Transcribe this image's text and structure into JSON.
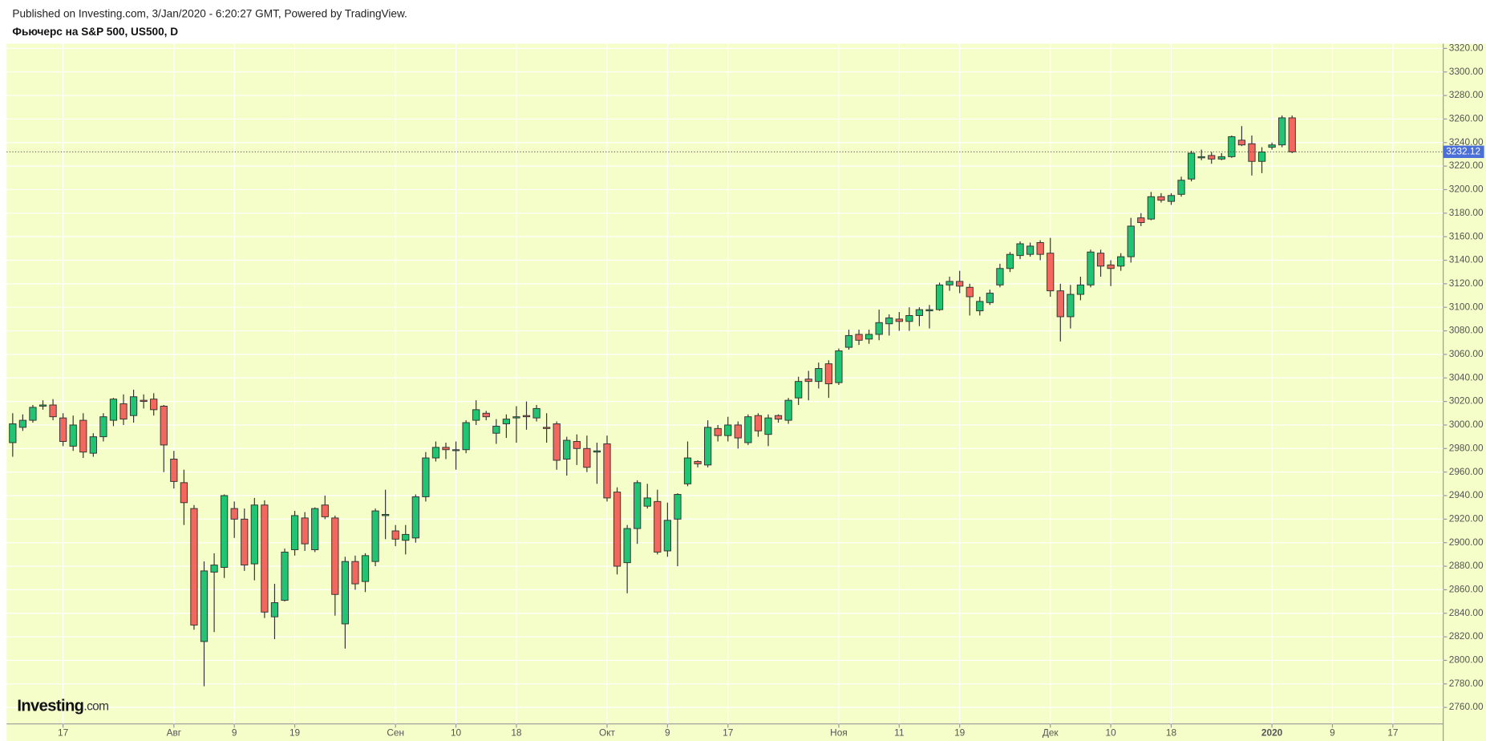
{
  "chart_data": {
    "type": "candlestick",
    "subtitle": "Published on Investing.com, 3/Jan/2020 - 6:20:27 GMT, Powered by TradingView.",
    "title": "Фьючерс на S&P 500, US500, D",
    "logo": "Investing",
    "logo_suffix": ".com",
    "up_color": "#20c472",
    "down_color": "#f2675e",
    "background": "#f5fdc9",
    "last_price_color": "#4a6fd8",
    "grid": true,
    "xlim": [
      -0.6,
      142
    ],
    "xticks": [
      {
        "value": 5,
        "label": "17"
      },
      {
        "value": 16,
        "label": "Авг"
      },
      {
        "value": 22,
        "label": "9"
      },
      {
        "value": 28,
        "label": "19"
      },
      {
        "value": 38,
        "label": "Сен"
      },
      {
        "value": 44,
        "label": "10"
      },
      {
        "value": 50,
        "label": "18"
      },
      {
        "value": 59,
        "label": "Окт"
      },
      {
        "value": 65,
        "label": "9"
      },
      {
        "value": 71,
        "label": "17"
      },
      {
        "value": 82,
        "label": "Ноя"
      },
      {
        "value": 88,
        "label": "11"
      },
      {
        "value": 94,
        "label": "19"
      },
      {
        "value": 103,
        "label": "Дек"
      },
      {
        "value": 109,
        "label": "10"
      },
      {
        "value": 115,
        "label": "18"
      },
      {
        "value": 125,
        "label": "2020",
        "bold": true
      },
      {
        "value": 131,
        "label": "9"
      },
      {
        "value": 137,
        "label": "17"
      }
    ],
    "ylim": [
      2746,
      3324
    ],
    "yticks": [
      {
        "value": 2760,
        "label": "2760.00"
      },
      {
        "value": 2780,
        "label": "2780.00"
      },
      {
        "value": 2800,
        "label": "2800.00"
      },
      {
        "value": 2820,
        "label": "2820.00"
      },
      {
        "value": 2840,
        "label": "2840.00"
      },
      {
        "value": 2860,
        "label": "2860.00"
      },
      {
        "value": 2880,
        "label": "2880.00"
      },
      {
        "value": 2900,
        "label": "2900.00"
      },
      {
        "value": 2920,
        "label": "2920.00"
      },
      {
        "value": 2940,
        "label": "2940.00"
      },
      {
        "value": 2960,
        "label": "2960.00"
      },
      {
        "value": 2980,
        "label": "2980.00"
      },
      {
        "value": 3000,
        "label": "3000.00"
      },
      {
        "value": 3020,
        "label": "3020.00"
      },
      {
        "value": 3040,
        "label": "3040.00"
      },
      {
        "value": 3060,
        "label": "3060.00"
      },
      {
        "value": 3080,
        "label": "3080.00"
      },
      {
        "value": 3100,
        "label": "3100.00"
      },
      {
        "value": 3120,
        "label": "3120.00"
      },
      {
        "value": 3140,
        "label": "3140.00"
      },
      {
        "value": 3160,
        "label": "3160.00"
      },
      {
        "value": 3180,
        "label": "3180.00"
      },
      {
        "value": 3200,
        "label": "3200.00"
      },
      {
        "value": 3220,
        "label": "3220.00"
      },
      {
        "value": 3240,
        "label": "3240.00"
      },
      {
        "value": 3260,
        "label": "3260.00"
      },
      {
        "value": 3280,
        "label": "3280.00"
      },
      {
        "value": 3300,
        "label": "3300.00"
      },
      {
        "value": 3320,
        "label": "3320.00"
      }
    ],
    "series": [
      {
        "open": [
          2985,
          2998,
          3004,
          3016,
          3017,
          3006,
          2982,
          3004,
          2976,
          2990,
          3004,
          3018,
          3008,
          3021,
          3022,
          3016,
          2971,
          2951,
          2929,
          2816,
          2875,
          2879,
          2929,
          2920,
          2882,
          2932,
          2837,
          2851,
          2894,
          2921,
          2894,
          2932,
          2921,
          2831,
          2884,
          2867,
          2884,
          2923,
          2910,
          2902,
          2904,
          2939,
          2972,
          2981,
          2979,
          2979,
          3004,
          3010,
          2993,
          3001,
          3006,
          3008,
          3006,
          2998,
          3001,
          2971,
          2986,
          2980,
          2977,
          2984,
          2943,
          2883,
          2912,
          2931,
          2935,
          2893,
          2920,
          2950,
          2969,
          2966,
          2997,
          2991,
          3000,
          2985,
          3008,
          2992,
          3008,
          3004,
          3023,
          3039,
          3037,
          3052,
          3036,
          3066,
          3077,
          3073,
          3077,
          3086,
          3090,
          3088,
          3093,
          3097,
          3098,
          3119,
          3122,
          3117,
          3097,
          3104,
          3119,
          3133,
          3144,
          3145,
          3155,
          3146,
          3114,
          3092,
          3111,
          3119,
          3146,
          3136,
          3135,
          3143,
          3176,
          3175,
          3194,
          3190,
          3196,
          3209,
          3227,
          3229,
          3226,
          3228,
          3242,
          3239,
          3224,
          3236,
          3238,
          3261
        ],
        "high": [
          3010,
          3009,
          3017,
          3021,
          3022,
          3010,
          3008,
          3010,
          2993,
          3010,
          3023,
          3026,
          3030,
          3026,
          3027,
          3017,
          2978,
          2962,
          2932,
          2884,
          2891,
          2941,
          2935,
          2929,
          2938,
          2936,
          2865,
          2895,
          2927,
          2926,
          2930,
          2940,
          2923,
          2888,
          2889,
          2891,
          2929,
          2945,
          2915,
          2915,
          2941,
          2977,
          2986,
          2985,
          2986,
          3004,
          3021,
          3012,
          3005,
          3009,
          3016,
          3020,
          3017,
          3010,
          3003,
          2990,
          2992,
          2991,
          2985,
          2991,
          2947,
          2915,
          2953,
          2950,
          2945,
          2934,
          2942,
          2986,
          2970,
          3004,
          3000,
          3007,
          3003,
          3009,
          3010,
          3009,
          3009,
          3023,
          3041,
          3046,
          3053,
          3055,
          3065,
          3081,
          3081,
          3081,
          3098,
          3094,
          3096,
          3100,
          3100,
          3102,
          3121,
          3126,
          3131,
          3120,
          3109,
          3115,
          3137,
          3147,
          3156,
          3155,
          3157,
          3159,
          3120,
          3119,
          3126,
          3149,
          3149,
          3140,
          3146,
          3176,
          3180,
          3198,
          3197,
          3197,
          3211,
          3233,
          3234,
          3232,
          3231,
          3246,
          3254,
          3246,
          3236,
          3240,
          3263,
          3263
        ],
        "low": [
          2973,
          2995,
          3002,
          3013,
          3004,
          2982,
          2978,
          2972,
          2973,
          2986,
          2999,
          3000,
          3002,
          3014,
          3008,
          2960,
          2946,
          2915,
          2826,
          2778,
          2824,
          2870,
          2904,
          2876,
          2868,
          2836,
          2818,
          2850,
          2889,
          2893,
          2892,
          2920,
          2838,
          2810,
          2860,
          2858,
          2880,
          2903,
          2897,
          2890,
          2900,
          2935,
          2969,
          2971,
          2962,
          2976,
          3000,
          3004,
          2984,
          2989,
          2985,
          2996,
          3003,
          2985,
          2962,
          2957,
          2966,
          2960,
          2950,
          2935,
          2873,
          2857,
          2899,
          2929,
          2890,
          2888,
          2880,
          2948,
          2964,
          2964,
          2986,
          2986,
          2980,
          2983,
          2990,
          2982,
          3002,
          3001,
          3017,
          3021,
          3031,
          3023,
          3034,
          3064,
          3068,
          3069,
          3072,
          3076,
          3080,
          3080,
          3084,
          3082,
          3097,
          3114,
          3112,
          3093,
          3093,
          3102,
          3117,
          3130,
          3141,
          3143,
          3140,
          3109,
          3071,
          3082,
          3106,
          3117,
          3126,
          3118,
          3131,
          3138,
          3169,
          3174,
          3189,
          3187,
          3194,
          3207,
          3225,
          3222,
          3225,
          3227,
          3237,
          3212,
          3214,
          3234,
          3236,
          3231
        ],
        "close": [
          3001,
          3004,
          3015,
          3017,
          3007,
          2986,
          3000,
          2977,
          2990,
          3007,
          3022,
          3005,
          3024,
          3020,
          3013,
          2983,
          2952,
          2934,
          2830,
          2876,
          2881,
          2940,
          2920,
          2881,
          2932,
          2841,
          2849,
          2892,
          2923,
          2899,
          2929,
          2922,
          2856,
          2884,
          2865,
          2889,
          2927,
          2924,
          2903,
          2907,
          2939,
          2972,
          2981,
          2979,
          2979,
          3002,
          3013,
          3007,
          2999,
          3005,
          3007,
          3007,
          3014,
          2997,
          2970,
          2987,
          2980,
          2964,
          2978,
          2938,
          2880,
          2912,
          2951,
          2938,
          2892,
          2919,
          2941,
          2972,
          2967,
          2998,
          2991,
          3000,
          2989,
          3007,
          2995,
          3006,
          3005,
          3021,
          3037,
          3037,
          3048,
          3035,
          3063,
          3076,
          3072,
          3077,
          3087,
          3091,
          3088,
          3093,
          3098,
          3098,
          3119,
          3122,
          3118,
          3109,
          3105,
          3112,
          3133,
          3145,
          3154,
          3152,
          3145,
          3114,
          3092,
          3111,
          3119,
          3147,
          3135,
          3133,
          3143,
          3169,
          3172,
          3194,
          3191,
          3195,
          3208,
          3231,
          3228,
          3226,
          3228,
          3245,
          3238,
          3224,
          3232,
          3238,
          3261,
          3232.12
        ]
      }
    ]
  }
}
